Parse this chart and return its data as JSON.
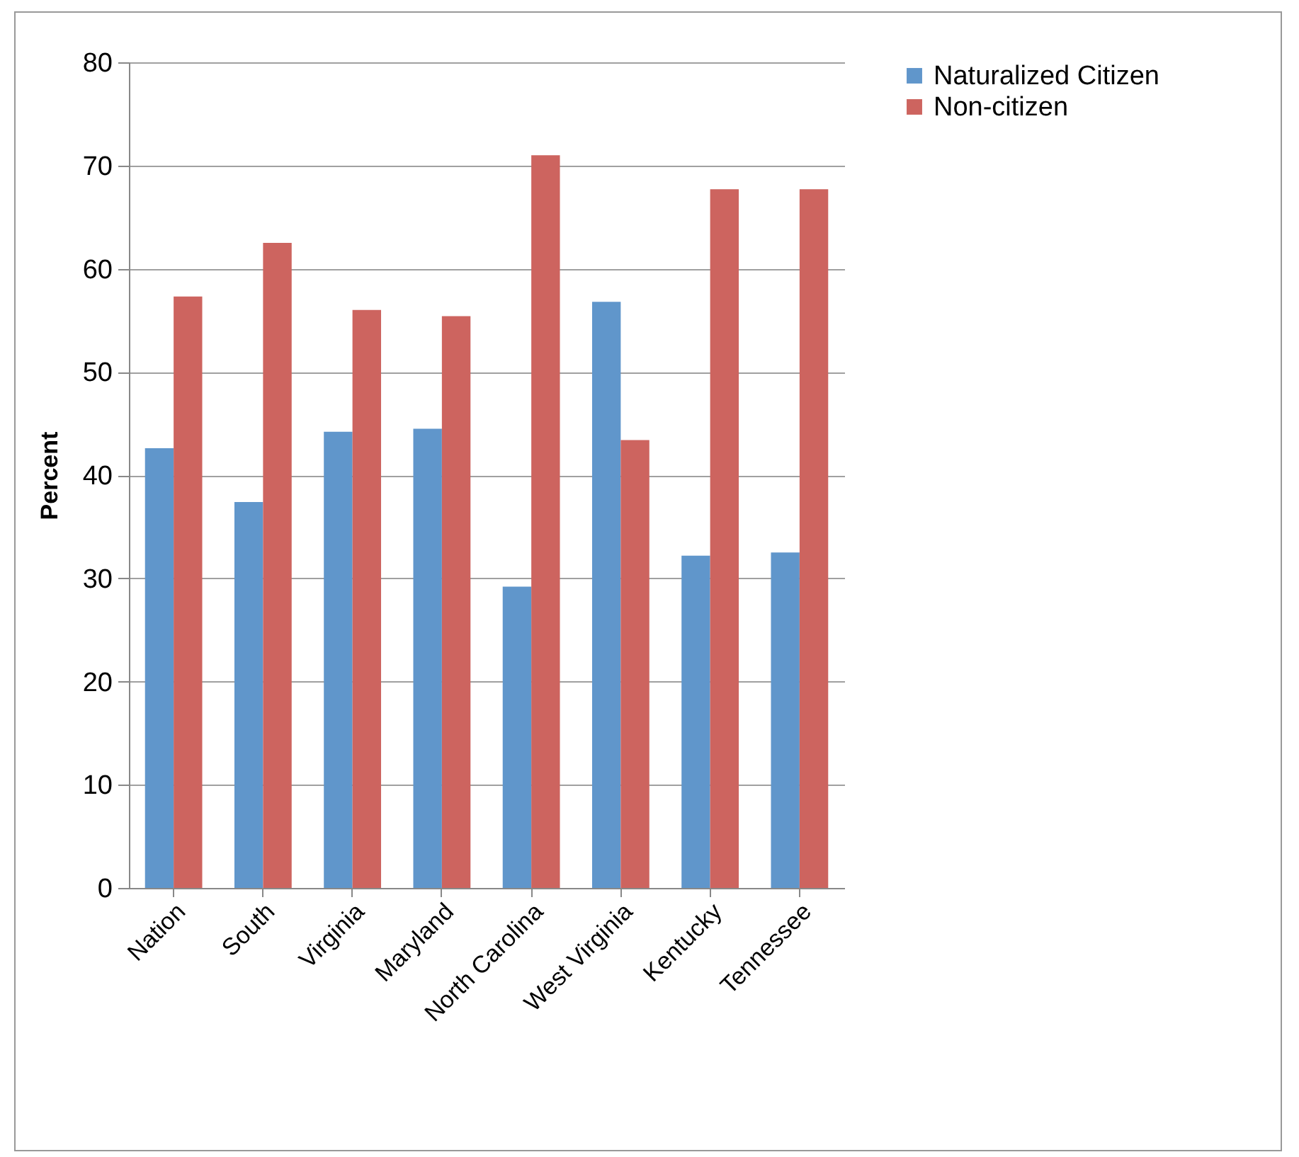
{
  "chart_data": {
    "type": "bar",
    "ylabel": "Percent",
    "categories": [
      "Nation",
      "South",
      "Virginia",
      "Maryland",
      "North Carolina",
      "West Virginia",
      "Kentucky",
      "Tennessee"
    ],
    "series": [
      {
        "name": "Naturalized Citizen",
        "color": "#6096cb",
        "values": [
          42.6,
          37.4,
          44.2,
          44.5,
          29.2,
          56.8,
          32.2,
          32.5
        ]
      },
      {
        "name": "Non-citizen",
        "color": "#cd645f",
        "values": [
          57.3,
          62.5,
          56.0,
          55.4,
          71.0,
          43.4,
          67.7,
          67.7
        ]
      }
    ],
    "ylim": [
      0,
      80
    ],
    "yticks": [
      0,
      10,
      20,
      30,
      40,
      50,
      60,
      70,
      80
    ],
    "grid": "y",
    "legend": "right"
  }
}
